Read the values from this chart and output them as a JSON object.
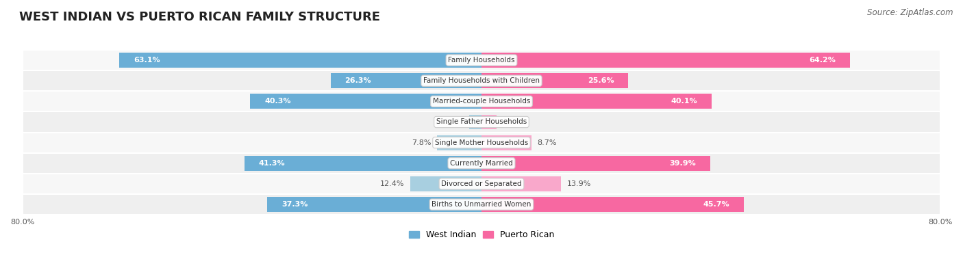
{
  "title": "WEST INDIAN VS PUERTO RICAN FAMILY STRUCTURE",
  "source": "Source: ZipAtlas.com",
  "categories": [
    "Family Households",
    "Family Households with Children",
    "Married-couple Households",
    "Single Father Households",
    "Single Mother Households",
    "Currently Married",
    "Divorced or Separated",
    "Births to Unmarried Women"
  ],
  "west_indian": [
    63.1,
    26.3,
    40.3,
    2.2,
    7.8,
    41.3,
    12.4,
    37.3
  ],
  "puerto_rican": [
    64.2,
    25.6,
    40.1,
    2.6,
    8.7,
    39.9,
    13.9,
    45.7
  ],
  "max_val": 80.0,
  "bar_color_wi": "#6aaed6",
  "bar_color_pr": "#f768a1",
  "bar_color_wi_light": "#a8cfe0",
  "bar_color_pr_light": "#f9a8cb",
  "label_color_wi_inside": "#ffffff",
  "label_color_outside": "#555555",
  "label_color_pr_inside": "#ffffff",
  "bg_row_odd": "#efefef",
  "bg_row_even": "#f7f7f7",
  "title_fontsize": 13,
  "source_fontsize": 8.5,
  "bar_label_fontsize": 8,
  "category_label_fontsize": 7.5,
  "legend_fontsize": 9,
  "axis_label_fontsize": 8,
  "large_threshold_wi": 15.0,
  "large_threshold_pr": 15.0
}
